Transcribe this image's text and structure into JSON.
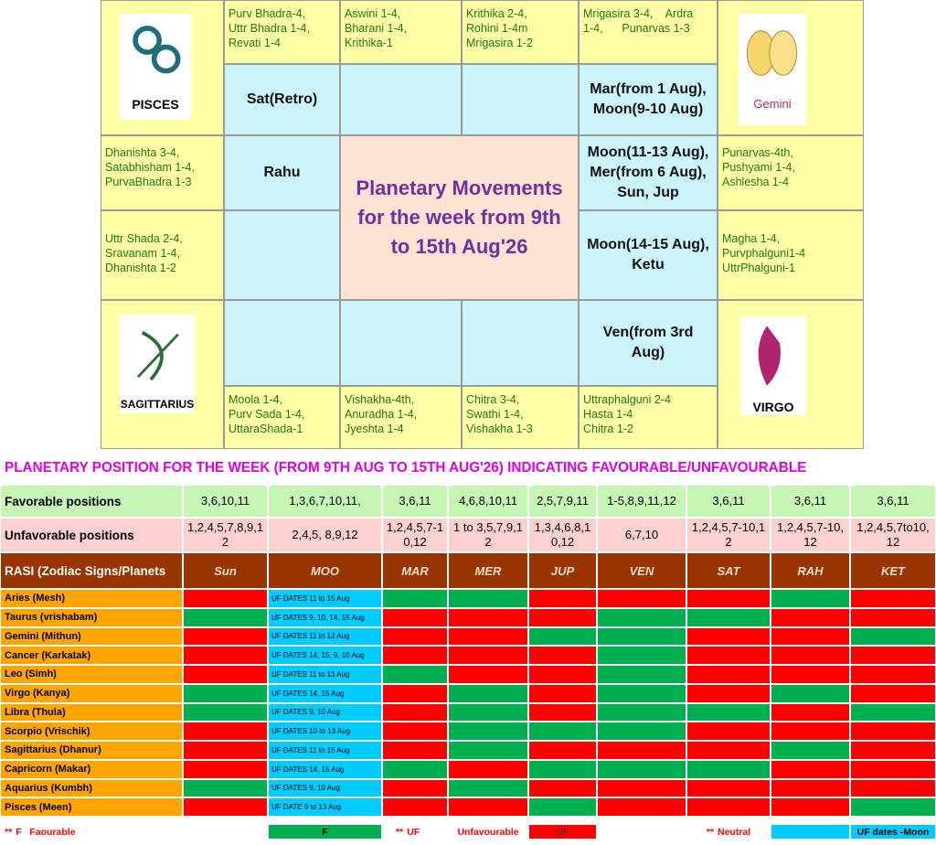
{
  "rasi_chart": {
    "title": "Planetary Movements for the week from 9th to 15th Aug'26",
    "corners": [
      "PISCES",
      "Gemini",
      "SAGITTARIUS",
      "VIRGO"
    ],
    "nakshatras": [
      [
        "Purv Bhadra-4,",
        "Uttr Bhadra 1-4,",
        "Revati 1-4"
      ],
      [
        "Aswini 1-4,",
        "Bharani 1-4,",
        "Krithika-1"
      ],
      [
        "Krithika 2-4,",
        "Rohini 1-4m",
        "Mrigasira 1-2"
      ],
      [
        "Mrigasira 3-4,    Ardra",
        "1-4,      Punarvas 1-3"
      ],
      [
        "Punarvas-4th,",
        "Pushyami 1-4,",
        "Ashlesha 1-4"
      ],
      [
        "Magha 1-4,",
        "Purvphalguni1-4",
        "UttrPhalguni-1"
      ],
      [
        "Uttraphalguni 2-4",
        "Hasta 1-4",
        "Chitra 1-2"
      ],
      [
        "Chitra 3-4,",
        "Swathi 1-4,",
        "Vishakha 1-3"
      ],
      [
        "Vishakha-4th,",
        "Anuradha 1-4,",
        "Jyeshta 1-4"
      ],
      [
        "Moola 1-4,",
        "Purv Sada 1-4,",
        "UttaraShada-1"
      ],
      [
        "Uttr Shada 2-4,",
        "Sravanam 1-4,",
        "Dhanishta 1-2"
      ],
      [
        "Dhanishta 3-4,",
        "Satabhisham 1-4,",
        "PurvaBhadra 1-3"
      ]
    ],
    "planets": [
      "Sat(Retro)",
      "Mar(from 1 Aug), Moon(9-10 Aug)",
      "Moon(11-13 Aug), Mer(from 6 Aug), Sun, Jup",
      "Moon(14-15 Aug), Ketu",
      "Ven(from 3rd Aug)",
      "Rahu"
    ]
  },
  "table": {
    "title": "PLANETARY POSITION FOR THE WEEK (FROM 9TH AUG TO 15TH AUG'26) INDICATING FAVOURABLE/UNFAVOURABLE",
    "favorable": {
      "label": "Favorable positions",
      "values": [
        "3,6,10,11",
        "1,3,6,7,10,11,",
        "3,6,11",
        "4,6,8,10,11",
        "2,5,7,9,11",
        "1-5,8,9,11,12",
        "3,6,11",
        "3,6,11",
        "3,6,11"
      ]
    },
    "unfavorable": {
      "label": "Unfavorable positions",
      "values": [
        "1,2,4,5,7,8,9,12",
        "2,4,5, 8,9,12",
        "1,2,4,5,7-10,12",
        "1 to 3,5,7,9,12",
        "1,3,4,6,8,10,12",
        "6,7,10",
        "1,2,4,5,7-10,12",
        "1,2,4,5,7-10,12",
        "1,2,4,5,7to10,12"
      ]
    },
    "header": {
      "label": "RASI (Zodiac Signs/Planets",
      "planets": [
        "Sun",
        "MOO",
        "MAR",
        "MER",
        "JUP",
        "VEN",
        "SAT",
        "RAH",
        "KET"
      ]
    },
    "status_colors": {
      "F": "#00b050",
      "UF": "#ff0000"
    },
    "rows": [
      {
        "rasi": "Aries (Mesh)",
        "moon": "UF DATES  11 to 15 Aug",
        "status": [
          "UF",
          "F",
          "F",
          "UF",
          "UF",
          "UF",
          "F",
          "UF"
        ]
      },
      {
        "rasi": "Taurus (vrishabam)",
        "moon": "UF DATES 9, 10, 14, 15 Aug",
        "status": [
          "F",
          "UF",
          "UF",
          "UF",
          "F",
          "F",
          "UF",
          "UF"
        ]
      },
      {
        "rasi": "Gemini (Mithun)",
        "moon": "UF DATES 11 to 13 Aug",
        "status": [
          "UF",
          "UF",
          "UF",
          "F",
          "F",
          "UF",
          "UF",
          "F"
        ]
      },
      {
        "rasi": "Cancer (Karkatak)",
        "moon": "UF DATES 14, 15, 9, 10 Aug",
        "status": [
          "UF",
          "UF",
          "UF",
          "UF",
          "F",
          "UF",
          "UF",
          "UF"
        ]
      },
      {
        "rasi": "Leo (Simh)",
        "moon": "UF DATES 11 to 13 Aug",
        "status": [
          "UF",
          "F",
          "UF",
          "UF",
          "F",
          "UF",
          "UF",
          "UF"
        ]
      },
      {
        "rasi": "Virgo (Kanya)",
        "moon": "UF DATES 14, 15 Aug",
        "status": [
          "F",
          "UF",
          "F",
          "UF",
          "F",
          "UF",
          "F",
          "UF"
        ]
      },
      {
        "rasi": "Libra (Thula)",
        "moon": "UF DATES 9, 10 Aug",
        "status": [
          "F",
          "UF",
          "F",
          "UF",
          "F",
          "F",
          "UF",
          "F"
        ]
      },
      {
        "rasi": "Scorpio (Vrischik)",
        "moon": "UF DATES 10 to 13 Aug",
        "status": [
          "UF",
          "UF",
          "F",
          "F",
          "F",
          "UF",
          "UF",
          "UF"
        ]
      },
      {
        "rasi": "Sagittarius (Dhanur)",
        "moon": "UF DATES 11 to 15 Aug",
        "status": [
          "UF",
          "UF",
          "F",
          "UF",
          "UF",
          "UF",
          "F",
          "UF"
        ]
      },
      {
        "rasi": "Capricorn (Makar)",
        "moon": "UF DATES 14, 15 Aug",
        "status": [
          "UF",
          "F",
          "UF",
          "F",
          "F",
          "F",
          "UF",
          "UF"
        ]
      },
      {
        "rasi": "Aquarius (Kumbh)",
        "moon": "UF DATES 9, 10 Aug",
        "status": [
          "F",
          "UF",
          "F",
          "UF",
          "UF",
          "UF",
          "UF",
          "UF"
        ]
      },
      {
        "rasi": "Pisces (Meen)",
        "moon": "UF DATE 9 to 13 Aug",
        "status": [
          "UF",
          "UF",
          "UF",
          "F",
          "UF",
          "UF",
          "UF",
          "F"
        ]
      }
    ],
    "legend": {
      "marker": "**",
      "favourable": "F   Faourable",
      "f_swatch": "F",
      "uf": "UF",
      "unfavourable": "Unfavourable",
      "uf_swatch": "UF",
      "neutral": "Neutral",
      "moon": "UF dates -Moon",
      "moon_color": "#00ccff"
    }
  }
}
